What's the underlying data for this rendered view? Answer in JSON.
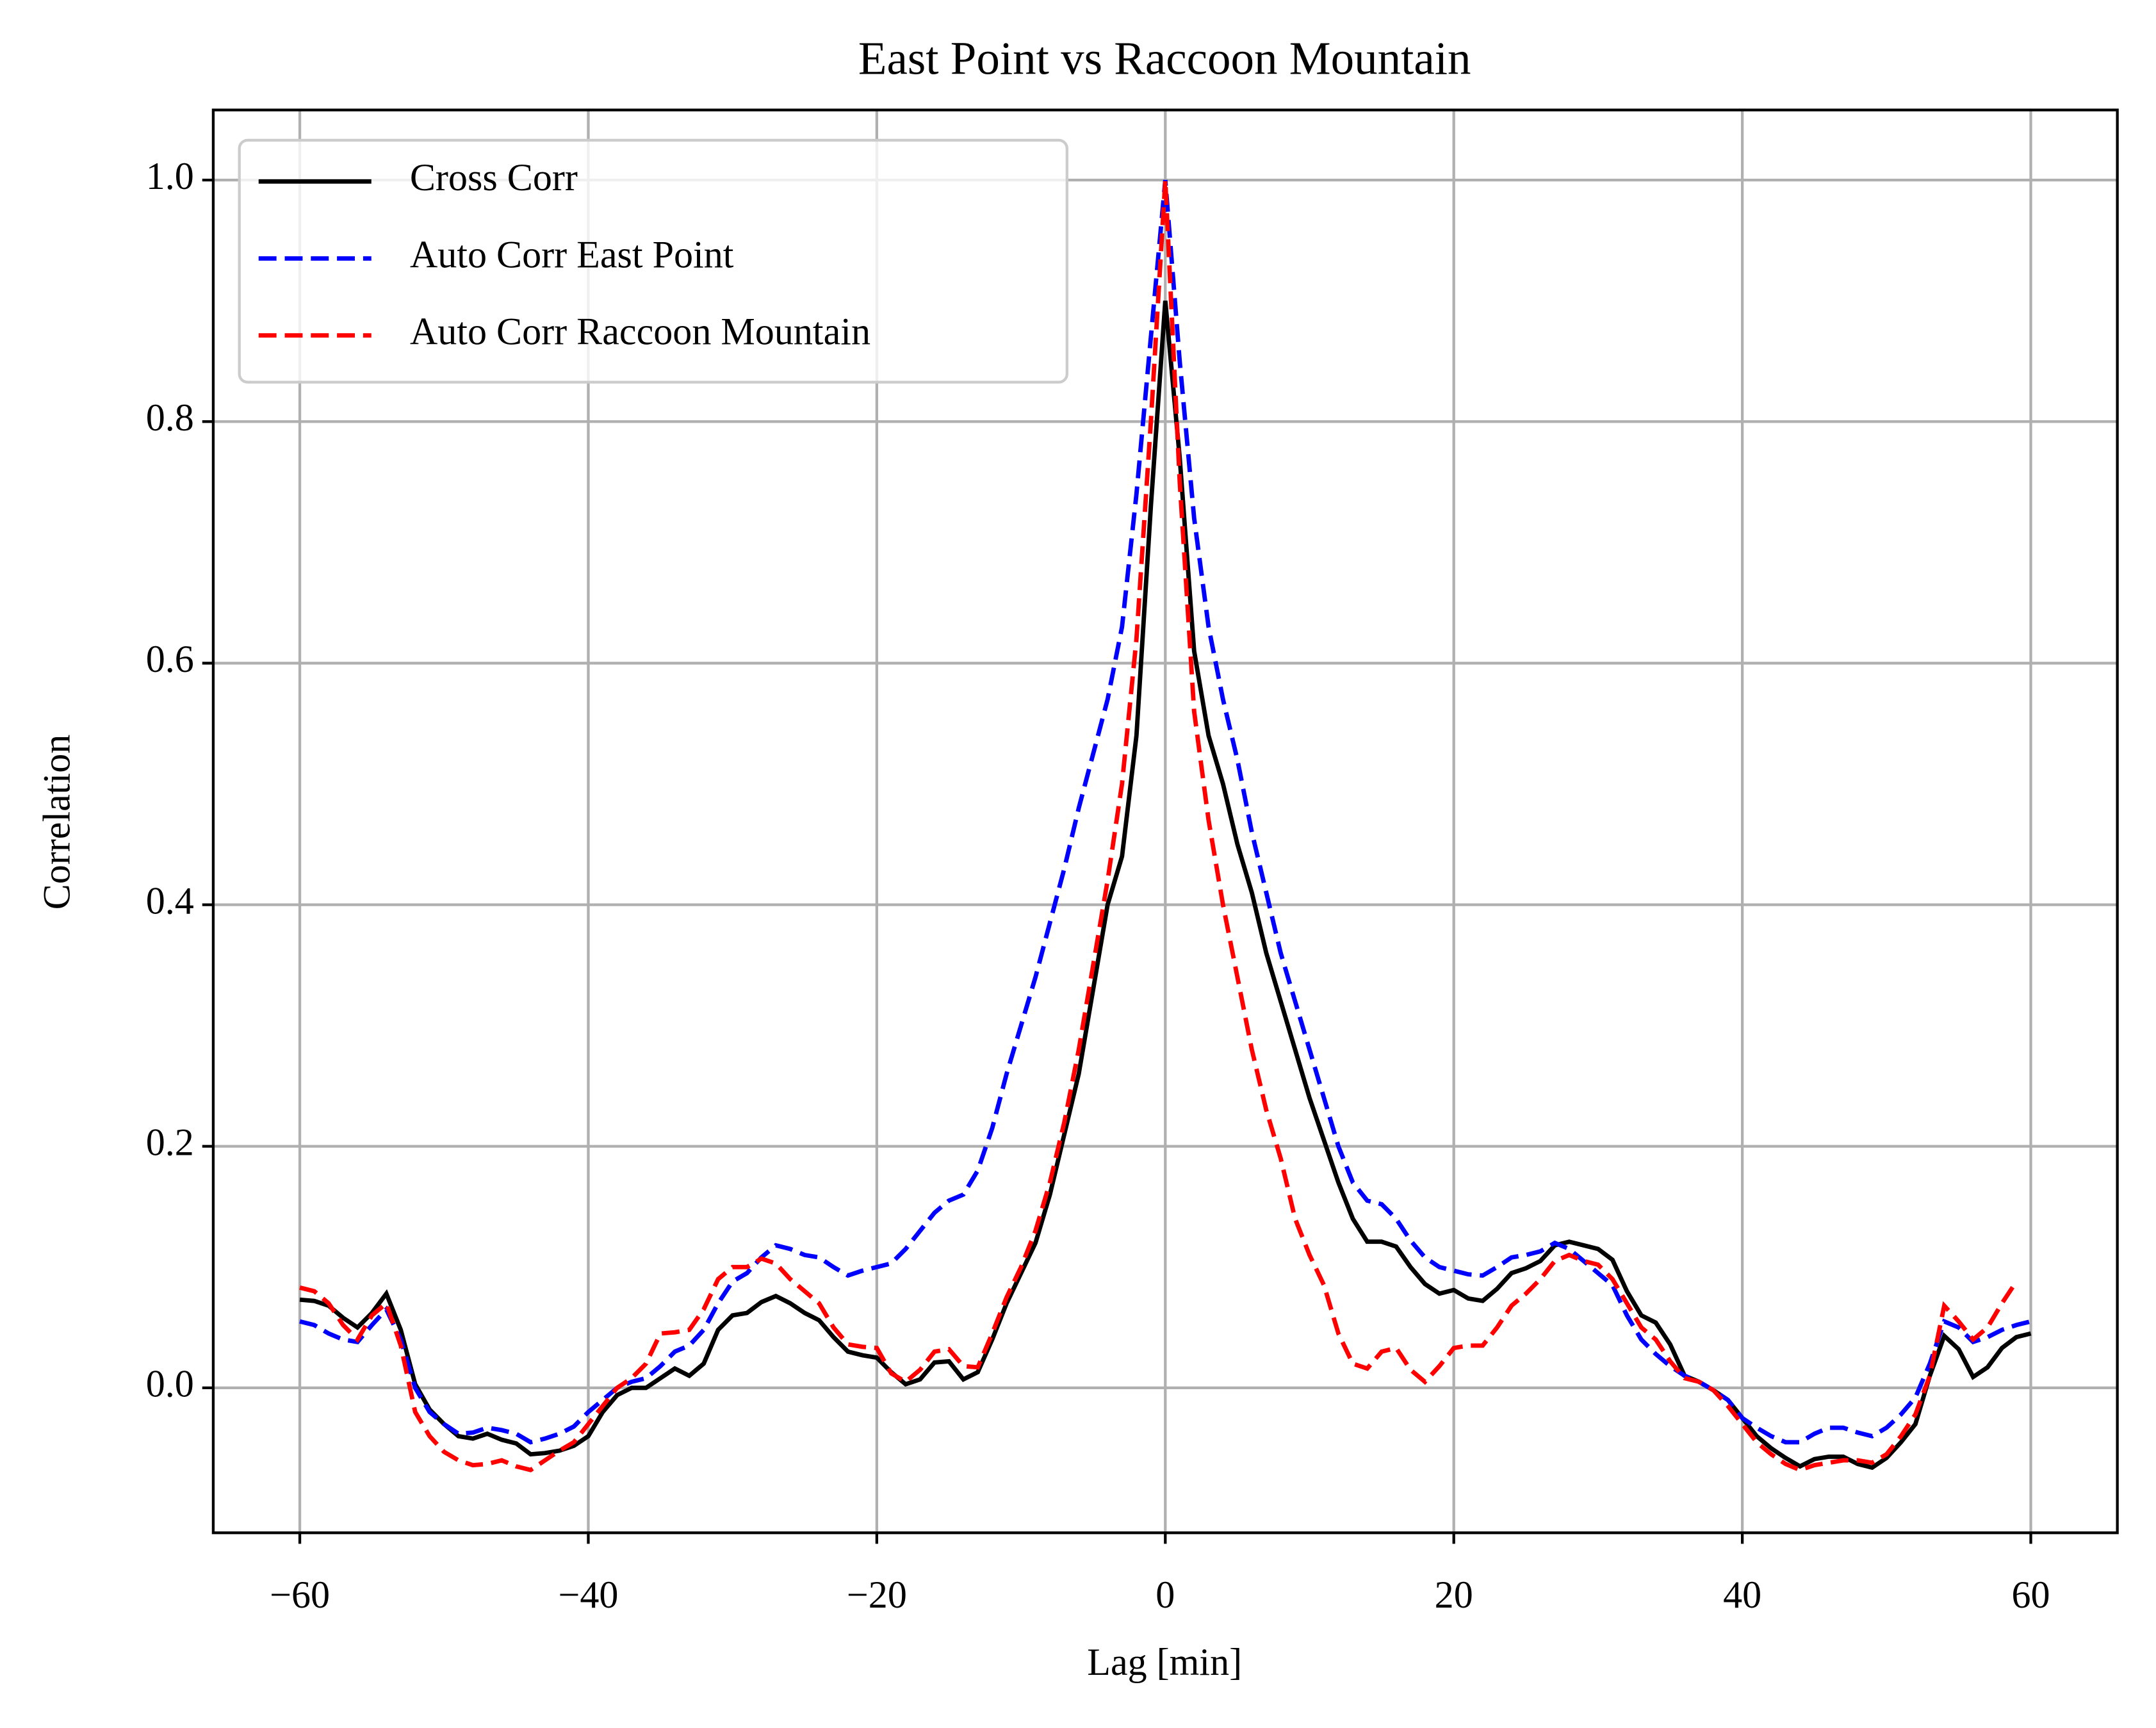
{
  "chart_data": {
    "type": "line",
    "title": "East Point vs Raccoon Mountain",
    "x_label": "Lag [min]",
    "y_label": "Correlation",
    "x": [
      -60,
      -59,
      -58,
      -57,
      -56,
      -55,
      -54,
      -53,
      -52,
      -51,
      -50,
      -49,
      -48,
      -47,
      -46,
      -45,
      -44,
      -43,
      -42,
      -41,
      -40,
      -39,
      -38,
      -37,
      -36,
      -35,
      -34,
      -33,
      -32,
      -31,
      -30,
      -29,
      -28,
      -27,
      -26,
      -25,
      -24,
      -23,
      -22,
      -21,
      -20,
      -19,
      -18,
      -17,
      -16,
      -15,
      -14,
      -13,
      -12,
      -11,
      -10,
      -9,
      -8,
      -7,
      -6,
      -5,
      -4,
      -3,
      -2,
      -1,
      0,
      1,
      2,
      3,
      4,
      5,
      6,
      7,
      8,
      9,
      10,
      11,
      12,
      13,
      14,
      15,
      16,
      17,
      18,
      19,
      20,
      21,
      22,
      23,
      24,
      25,
      26,
      27,
      28,
      29,
      30,
      31,
      32,
      33,
      34,
      35,
      36,
      37,
      38,
      39,
      40,
      41,
      42,
      43,
      44,
      45,
      46,
      47,
      48,
      49,
      50,
      51,
      52,
      53,
      54,
      55,
      56,
      57,
      58,
      59,
      60
    ],
    "series": [
      {
        "name": "Cross Corr",
        "color": "#000000",
        "linestyle": "solid",
        "values": [
          0.073,
          0.072,
          0.068,
          0.058,
          0.05,
          0.062,
          0.078,
          0.048,
          0.003,
          -0.018,
          -0.03,
          -0.04,
          -0.042,
          -0.038,
          -0.043,
          -0.046,
          -0.055,
          -0.054,
          -0.052,
          -0.048,
          -0.04,
          -0.02,
          -0.006,
          0.0,
          0.0,
          0.008,
          0.016,
          0.01,
          0.02,
          0.048,
          0.06,
          0.062,
          0.071,
          0.076,
          0.07,
          0.062,
          0.056,
          0.042,
          0.03,
          0.027,
          0.025,
          0.013,
          0.003,
          0.007,
          0.021,
          0.022,
          0.007,
          0.013,
          0.04,
          0.07,
          0.095,
          0.12,
          0.16,
          0.21,
          0.26,
          0.33,
          0.4,
          0.44,
          0.54,
          0.73,
          0.9,
          0.77,
          0.61,
          0.54,
          0.5,
          0.45,
          0.41,
          0.36,
          0.32,
          0.28,
          0.24,
          0.205,
          0.17,
          0.14,
          0.121,
          0.121,
          0.117,
          0.1,
          0.086,
          0.078,
          0.081,
          0.074,
          0.072,
          0.082,
          0.095,
          0.099,
          0.105,
          0.118,
          0.121,
          0.118,
          0.115,
          0.106,
          0.08,
          0.06,
          0.054,
          0.036,
          0.01,
          0.005,
          -0.002,
          -0.01,
          -0.025,
          -0.04,
          -0.05,
          -0.058,
          -0.065,
          -0.059,
          -0.057,
          -0.057,
          -0.063,
          -0.066,
          -0.058,
          -0.045,
          -0.03,
          0.01,
          0.043,
          0.032,
          0.009,
          0.017,
          0.033,
          0.042,
          0.045
        ]
      },
      {
        "name": "Auto Corr East Point",
        "color": "#0000ff",
        "linestyle": "dashed",
        "values": [
          0.055,
          0.052,
          0.045,
          0.04,
          0.038,
          0.052,
          0.065,
          0.04,
          0.0,
          -0.02,
          -0.03,
          -0.038,
          -0.037,
          -0.033,
          -0.035,
          -0.038,
          -0.045,
          -0.042,
          -0.038,
          -0.032,
          -0.02,
          -0.01,
          0.0,
          0.005,
          0.008,
          0.018,
          0.03,
          0.035,
          0.048,
          0.07,
          0.088,
          0.095,
          0.108,
          0.118,
          0.115,
          0.11,
          0.108,
          0.1,
          0.093,
          0.097,
          0.1,
          0.103,
          0.115,
          0.13,
          0.145,
          0.155,
          0.16,
          0.18,
          0.215,
          0.26,
          0.3,
          0.34,
          0.385,
          0.43,
          0.48,
          0.525,
          0.57,
          0.63,
          0.74,
          0.87,
          1.0,
          0.85,
          0.72,
          0.63,
          0.57,
          0.52,
          0.46,
          0.41,
          0.36,
          0.32,
          0.28,
          0.24,
          0.2,
          0.17,
          0.155,
          0.152,
          0.14,
          0.122,
          0.108,
          0.1,
          0.097,
          0.094,
          0.093,
          0.1,
          0.108,
          0.11,
          0.113,
          0.12,
          0.115,
          0.105,
          0.095,
          0.085,
          0.06,
          0.04,
          0.028,
          0.018,
          0.01,
          0.005,
          -0.002,
          -0.01,
          -0.025,
          -0.033,
          -0.04,
          -0.045,
          -0.045,
          -0.038,
          -0.033,
          -0.033,
          -0.037,
          -0.04,
          -0.033,
          -0.022,
          -0.008,
          0.02,
          0.055,
          0.05,
          0.038,
          0.042,
          0.048,
          0.052,
          0.055
        ]
      },
      {
        "name": "Auto Corr Raccoon Mountain",
        "color": "#ff0000",
        "linestyle": "dashed",
        "values": [
          0.083,
          0.08,
          0.07,
          0.052,
          0.04,
          0.06,
          0.07,
          0.035,
          -0.02,
          -0.04,
          -0.053,
          -0.06,
          -0.064,
          -0.063,
          -0.06,
          -0.065,
          -0.068,
          -0.06,
          -0.052,
          -0.045,
          -0.03,
          -0.015,
          0.0,
          0.008,
          0.02,
          0.045,
          0.046,
          0.048,
          0.065,
          0.09,
          0.1,
          0.1,
          0.107,
          0.103,
          0.09,
          0.08,
          0.07,
          0.05,
          0.036,
          0.034,
          0.033,
          0.012,
          0.005,
          0.015,
          0.03,
          0.032,
          0.018,
          0.017,
          0.045,
          0.075,
          0.1,
          0.13,
          0.17,
          0.22,
          0.28,
          0.35,
          0.42,
          0.5,
          0.62,
          0.8,
          1.0,
          0.75,
          0.56,
          0.47,
          0.4,
          0.34,
          0.28,
          0.23,
          0.19,
          0.14,
          0.11,
          0.085,
          0.045,
          0.02,
          0.016,
          0.03,
          0.033,
          0.015,
          0.005,
          0.018,
          0.033,
          0.035,
          0.035,
          0.05,
          0.068,
          0.078,
          0.09,
          0.105,
          0.11,
          0.105,
          0.102,
          0.09,
          0.07,
          0.05,
          0.04,
          0.022,
          0.008,
          0.005,
          -0.002,
          -0.015,
          -0.03,
          -0.045,
          -0.055,
          -0.063,
          -0.068,
          -0.064,
          -0.062,
          -0.06,
          -0.06,
          -0.062,
          -0.055,
          -0.04,
          -0.022,
          0.01,
          0.068,
          0.055,
          0.04,
          0.05,
          0.07,
          0.088,
          null
        ]
      }
    ],
    "xlim": [
      -66,
      66
    ],
    "ylim": [
      -0.12,
      1.058
    ],
    "xticks": [
      {
        "value": -60,
        "label": "−60"
      },
      {
        "value": -40,
        "label": "−40"
      },
      {
        "value": -20,
        "label": "−20"
      },
      0,
      20,
      40,
      60
    ],
    "yticks": [
      {
        "value": 0,
        "label": "0.0"
      },
      0.2,
      0.4,
      0.6,
      0.8,
      {
        "value": 1,
        "label": "1.0"
      }
    ],
    "grid": true,
    "legend": "upper left"
  }
}
